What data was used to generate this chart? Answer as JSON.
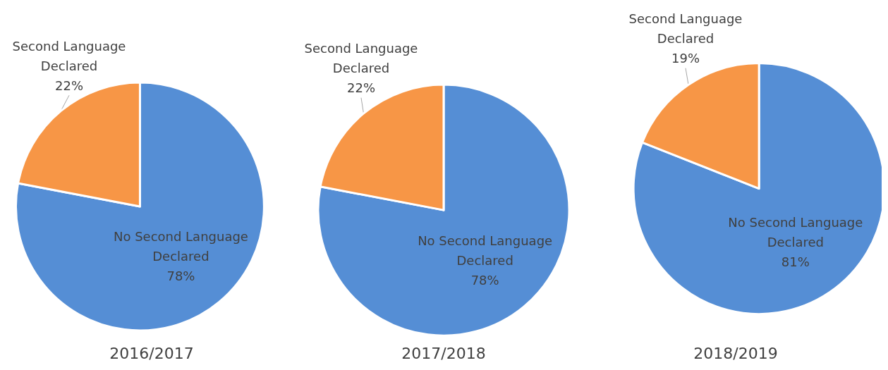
{
  "chart_data": [
    {
      "type": "pie",
      "title": "2016/2017",
      "categories": [
        "No Second Language Declared",
        "Second Language Declared"
      ],
      "values": [
        78,
        22
      ],
      "value_labels": [
        "78%",
        "22%"
      ],
      "colors": [
        "#558ed5",
        "#f79646"
      ],
      "legend": false
    },
    {
      "type": "pie",
      "title": "2017/2018",
      "categories": [
        "No Second Language Declared",
        "Second Language Declared"
      ],
      "values": [
        78,
        22
      ],
      "value_labels": [
        "78%",
        "22%"
      ],
      "colors": [
        "#558ed5",
        "#f79646"
      ],
      "legend": false
    },
    {
      "type": "pie",
      "title": "2018/2019",
      "categories": [
        "No Second Language Declared",
        "Second Language Declared"
      ],
      "values": [
        81,
        19
      ],
      "value_labels": [
        "81%",
        "19%"
      ],
      "colors": [
        "#558ed5",
        "#f79646"
      ],
      "legend": false
    }
  ]
}
